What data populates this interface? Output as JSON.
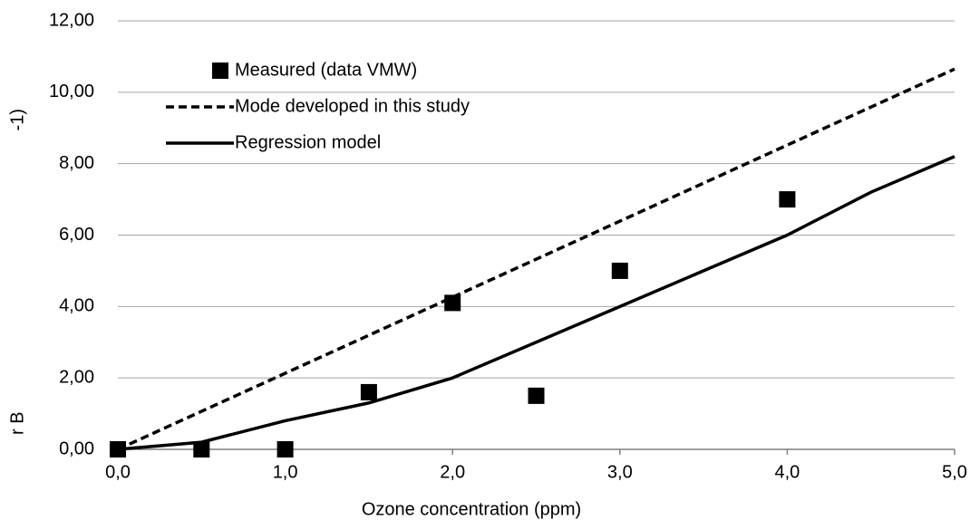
{
  "chart_data": {
    "type": "line",
    "x_label": "Ozone concentration (ppm)",
    "y_label_start": "r B",
    "y_label_end": "-1)",
    "xlim": [
      0,
      5
    ],
    "ylim": [
      0,
      12
    ],
    "xticks": [
      {
        "value": 0,
        "label": "0,0"
      },
      {
        "value": 1,
        "label": "1,0"
      },
      {
        "value": 2,
        "label": "2,0"
      },
      {
        "value": 3,
        "label": "3,0"
      },
      {
        "value": 4,
        "label": "4,0"
      },
      {
        "value": 5,
        "label": "5,0"
      }
    ],
    "yticks": [
      {
        "value": 0,
        "label": "0,00"
      },
      {
        "value": 2,
        "label": "2,00"
      },
      {
        "value": 4,
        "label": "4,00"
      },
      {
        "value": 6,
        "label": "6,00"
      },
      {
        "value": 8,
        "label": "8,00"
      },
      {
        "value": 10,
        "label": "10,00"
      },
      {
        "value": 12,
        "label": "12,00"
      }
    ],
    "grid": true,
    "legend": "upper left",
    "series": [
      {
        "name": "Measured (data VMW)",
        "color": "#000000",
        "style": "marker",
        "x": [
          0,
          0.5,
          1,
          1.5,
          2,
          2.5,
          3,
          4
        ],
        "values": [
          0,
          0,
          0,
          1.6,
          4.1,
          1.5,
          5,
          7
        ]
      },
      {
        "name": "Mode developed in this study",
        "color": "#000000",
        "style": "dashed",
        "x": [
          0,
          5
        ],
        "values": [
          0,
          10.65
        ]
      },
      {
        "name": "Regression model",
        "color": "#000000",
        "style": "solid",
        "x": [
          0,
          0.5,
          1,
          1.5,
          2,
          2.5,
          3,
          3.5,
          4,
          4.5,
          5
        ],
        "values": [
          0,
          0.2,
          0.8,
          1.3,
          2.0,
          3.0,
          4.0,
          5.0,
          6.0,
          7.2,
          8.2
        ]
      }
    ]
  }
}
